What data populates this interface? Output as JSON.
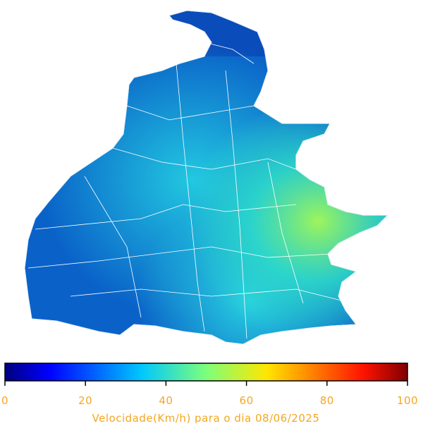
{
  "colorbar": {
    "label": "Velocidade(Km/h) para o dia 08/06/2025",
    "lim": [
      0,
      100
    ],
    "ticks": [
      0,
      20,
      40,
      60,
      80,
      100
    ]
  }
}
